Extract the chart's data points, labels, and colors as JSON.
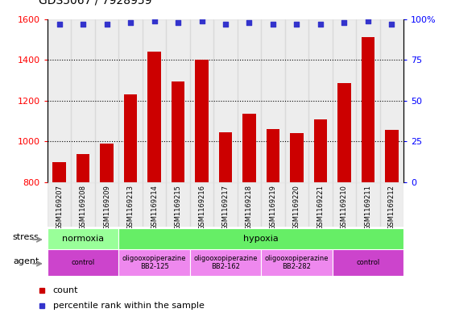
{
  "title": "GDS5067 / 7928959",
  "samples": [
    "GSM1169207",
    "GSM1169208",
    "GSM1169209",
    "GSM1169213",
    "GSM1169214",
    "GSM1169215",
    "GSM1169216",
    "GSM1169217",
    "GSM1169218",
    "GSM1169219",
    "GSM1169220",
    "GSM1169221",
    "GSM1169210",
    "GSM1169211",
    "GSM1169212"
  ],
  "counts": [
    900,
    940,
    990,
    1230,
    1440,
    1295,
    1400,
    1045,
    1135,
    1060,
    1040,
    1110,
    1285,
    1510,
    1055
  ],
  "percentiles": [
    97,
    97,
    97,
    98,
    99,
    98,
    99,
    97,
    98,
    97,
    97,
    97,
    98,
    99,
    97
  ],
  "ylim": [
    800,
    1600
  ],
  "yticks_left": [
    800,
    1000,
    1200,
    1400,
    1600
  ],
  "yticks_right": [
    0,
    25,
    50,
    75,
    100
  ],
  "bar_color": "#cc0000",
  "dot_color": "#3333cc",
  "stress_groups": [
    {
      "label": "normoxia",
      "start": 0,
      "end": 3,
      "color": "#99ff99"
    },
    {
      "label": "hypoxia",
      "start": 3,
      "end": 15,
      "color": "#66ee66"
    }
  ],
  "agent_groups": [
    {
      "label": "control",
      "start": 0,
      "end": 3,
      "color": "#cc44cc"
    },
    {
      "label": "oligooxopiperazine\nBB2-125",
      "start": 3,
      "end": 6,
      "color": "#ee88ee"
    },
    {
      "label": "oligooxopiperazine\nBB2-162",
      "start": 6,
      "end": 9,
      "color": "#ee88ee"
    },
    {
      "label": "oligooxopiperazine\nBB2-282",
      "start": 9,
      "end": 12,
      "color": "#ee88ee"
    },
    {
      "label": "control",
      "start": 12,
      "end": 15,
      "color": "#cc44cc"
    }
  ],
  "legend_count_label": "count",
  "legend_pct_label": "percentile rank within the sample",
  "col_bg_color": "#cccccc",
  "plot_bg_color": "#ffffff"
}
